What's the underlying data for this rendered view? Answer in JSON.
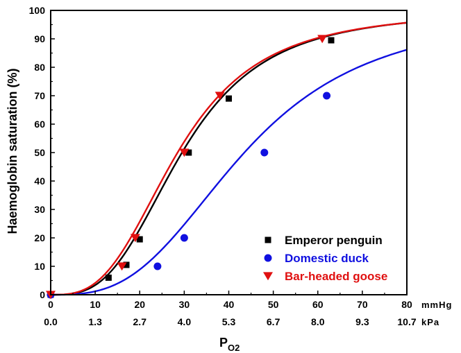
{
  "chart_data": {
    "type": "line",
    "title": "",
    "ylabel": "Haemoglobin saturation (%)",
    "xlabel_main": "P",
    "xlabel_sub": "O2",
    "x_unit_primary": "mmHg",
    "x_unit_secondary": "kPa",
    "xlim": [
      0,
      80
    ],
    "ylim": [
      0,
      100
    ],
    "x_ticks": [
      0,
      10,
      20,
      30,
      40,
      50,
      60,
      70,
      80
    ],
    "x_tick_labels": [
      "0",
      "10",
      "20",
      "30",
      "40",
      "50",
      "60",
      "70",
      "80"
    ],
    "x_secondary_tick_labels": [
      "0.0",
      "1.3",
      "2.7",
      "4.0",
      "5.3",
      "6.7",
      "8.0",
      "9.3",
      "10.7"
    ],
    "y_ticks": [
      0,
      10,
      20,
      30,
      40,
      50,
      60,
      70,
      80,
      90,
      100
    ],
    "y_tick_labels": [
      "0",
      "10",
      "20",
      "30",
      "40",
      "50",
      "60",
      "70",
      "80",
      "90",
      "100"
    ],
    "grid": false,
    "legend_position": "bottom-right",
    "series": [
      {
        "name": "Emperor penguin",
        "color": "#000000",
        "marker": "square",
        "points": [
          [
            0,
            0
          ],
          [
            13,
            6
          ],
          [
            17,
            10.5
          ],
          [
            20,
            19.5
          ],
          [
            31,
            50
          ],
          [
            40,
            69
          ],
          [
            63,
            89.5
          ]
        ],
        "curve": {
          "p50": 29.5,
          "n": 3.1,
          "max": 100
        }
      },
      {
        "name": "Domestic duck",
        "color": "#1010e0",
        "marker": "circle",
        "points": [
          [
            0,
            0
          ],
          [
            24,
            10
          ],
          [
            30,
            20
          ],
          [
            48,
            50
          ],
          [
            62,
            70
          ]
        ],
        "curve": {
          "p50": 43.5,
          "n": 3.0,
          "max": 100
        }
      },
      {
        "name": "Bar-headed goose",
        "color": "#e01010",
        "marker": "triangle-down",
        "points": [
          [
            0,
            0
          ],
          [
            16,
            10
          ],
          [
            19,
            20
          ],
          [
            30,
            50
          ],
          [
            38,
            70
          ],
          [
            61,
            90
          ]
        ],
        "curve": {
          "p50": 28.5,
          "n": 3.0,
          "max": 100
        }
      }
    ]
  }
}
